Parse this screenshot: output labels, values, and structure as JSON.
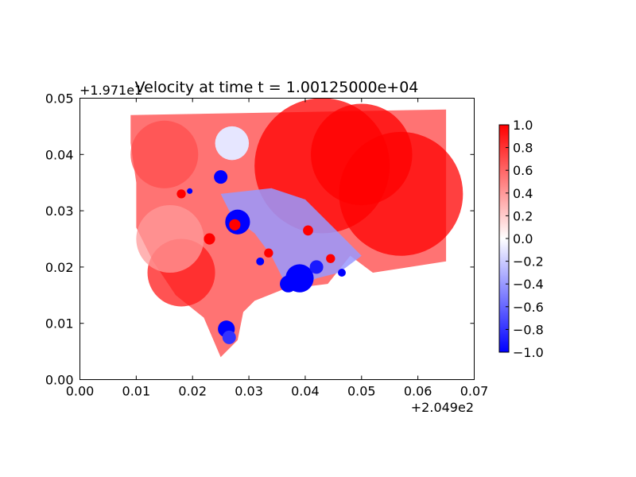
{
  "chart_data": {
    "type": "heatmap",
    "title": "Velocity at time t = 1.00125000e+04",
    "xlabel": "",
    "ylabel": "",
    "xlim": [
      0.0,
      0.07
    ],
    "ylim": [
      0.0,
      0.05
    ],
    "x_ticks": [
      "0.00",
      "0.01",
      "0.02",
      "0.03",
      "0.04",
      "0.05",
      "0.06",
      "0.07"
    ],
    "y_ticks": [
      "0.00",
      "0.01",
      "0.02",
      "0.03",
      "0.04",
      "0.05"
    ],
    "x_offset_label": "+2.049e2",
    "y_offset_label": "+1.971e1",
    "colormap": "bwr",
    "colorbar": {
      "range": [
        -1.0,
        1.0
      ],
      "ticks": [
        "1.0",
        "0.8",
        "0.6",
        "0.4",
        "0.2",
        "0.0",
        "−0.2",
        "−0.4",
        "−0.6",
        "−0.8",
        "−1.0"
      ],
      "placement": "right"
    },
    "colors": {
      "positive": "#ff0000",
      "zero": "#ffffff",
      "negative": "#0000ff"
    },
    "grid": false,
    "regions": [
      {
        "name": "domain",
        "polygon": [
          [
            0.009,
            0.047
          ],
          [
            0.065,
            0.048
          ],
          [
            0.065,
            0.021
          ],
          [
            0.052,
            0.019
          ],
          [
            0.048,
            0.022
          ],
          [
            0.044,
            0.017
          ],
          [
            0.036,
            0.016
          ],
          [
            0.031,
            0.014
          ],
          [
            0.029,
            0.012
          ],
          [
            0.028,
            0.007
          ],
          [
            0.025,
            0.004
          ],
          [
            0.022,
            0.011
          ],
          [
            0.017,
            0.015
          ],
          [
            0.013,
            0.021
          ],
          [
            0.01,
            0.027
          ],
          [
            0.01,
            0.035
          ],
          [
            0.009,
            0.042
          ]
        ]
      },
      {
        "name": "wake",
        "value": -0.4,
        "polygon": [
          [
            0.025,
            0.033
          ],
          [
            0.034,
            0.034
          ],
          [
            0.04,
            0.032
          ],
          [
            0.045,
            0.027
          ],
          [
            0.05,
            0.022
          ],
          [
            0.046,
            0.019
          ],
          [
            0.042,
            0.018
          ],
          [
            0.038,
            0.016
          ],
          [
            0.036,
            0.018
          ],
          [
            0.034,
            0.022
          ],
          [
            0.031,
            0.026
          ],
          [
            0.027,
            0.029
          ]
        ]
      }
    ],
    "blobs": [
      {
        "x": 0.043,
        "y": 0.038,
        "r": 0.012,
        "value": 1.0
      },
      {
        "x": 0.057,
        "y": 0.033,
        "r": 0.011,
        "value": 1.0
      },
      {
        "x": 0.05,
        "y": 0.04,
        "r": 0.009,
        "value": 1.0
      },
      {
        "x": 0.018,
        "y": 0.019,
        "r": 0.006,
        "value": 0.9
      },
      {
        "x": 0.015,
        "y": 0.04,
        "r": 0.006,
        "value": 0.7
      },
      {
        "x": 0.016,
        "y": 0.025,
        "r": 0.006,
        "value": 0.4
      },
      {
        "x": 0.027,
        "y": 0.042,
        "r": 0.003,
        "value": -0.1
      },
      {
        "x": 0.025,
        "y": 0.036,
        "r": 0.0012,
        "value": -1.0
      },
      {
        "x": 0.028,
        "y": 0.028,
        "r": 0.0022,
        "value": -1.0
      },
      {
        "x": 0.039,
        "y": 0.018,
        "r": 0.0025,
        "value": -1.0
      },
      {
        "x": 0.037,
        "y": 0.017,
        "r": 0.0015,
        "value": -1.0
      },
      {
        "x": 0.042,
        "y": 0.02,
        "r": 0.0012,
        "value": -0.9
      },
      {
        "x": 0.026,
        "y": 0.009,
        "r": 0.0015,
        "value": -1.0
      },
      {
        "x": 0.0265,
        "y": 0.0075,
        "r": 0.0012,
        "value": -0.8
      },
      {
        "x": 0.0275,
        "y": 0.0275,
        "r": 0.001,
        "value": 1.0
      },
      {
        "x": 0.023,
        "y": 0.025,
        "r": 0.001,
        "value": 1.0
      },
      {
        "x": 0.018,
        "y": 0.033,
        "r": 0.0008,
        "value": 1.0
      },
      {
        "x": 0.0335,
        "y": 0.0225,
        "r": 0.0008,
        "value": 1.0
      },
      {
        "x": 0.0405,
        "y": 0.0265,
        "r": 0.0009,
        "value": 1.0
      },
      {
        "x": 0.0445,
        "y": 0.0215,
        "r": 0.0008,
        "value": 1.0
      },
      {
        "x": 0.032,
        "y": 0.021,
        "r": 0.0007,
        "value": -1.0
      },
      {
        "x": 0.0465,
        "y": 0.019,
        "r": 0.0007,
        "value": -1.0
      },
      {
        "x": 0.0195,
        "y": 0.0335,
        "r": 0.0005,
        "value": -1.0
      }
    ]
  }
}
